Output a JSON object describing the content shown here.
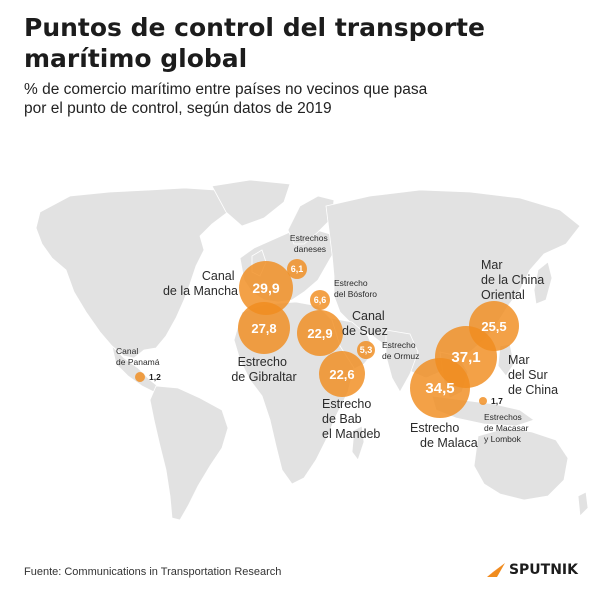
{
  "header": {
    "title_line1": "Puntos de control del transporte",
    "title_line2": "marítimo global",
    "subtitle_line1": "% de comercio marítimo entre países no vecinos que pasa",
    "subtitle_line2": "por el punto de control, según datos de 2019"
  },
  "chokepoints": [
    {
      "name_lines": [
        "Canal",
        "de la Mancha"
      ],
      "value": "29,9"
    },
    {
      "name_lines": [
        "Estrechos",
        "daneses"
      ],
      "value": "6,1"
    },
    {
      "name_lines": [
        "Estrecho",
        "del Bósforo"
      ],
      "value": "6,6"
    },
    {
      "name_lines": [
        "Canal",
        "de Suez"
      ],
      "value": "22,9"
    },
    {
      "name_lines": [
        "Estrecho",
        "de Gibraltar"
      ],
      "value": "27,8"
    },
    {
      "name_lines": [
        "Estrecho",
        "de Ormuz"
      ],
      "value": "5,3"
    },
    {
      "name_lines": [
        "Estrecho",
        "de Bab",
        "el Mandeb"
      ],
      "value": "22,6"
    },
    {
      "name_lines": [
        "Canal",
        "de Panamá"
      ],
      "value": "1,2"
    },
    {
      "name_lines": [
        "Mar",
        "de la China",
        "Oriental"
      ],
      "value": "25,5"
    },
    {
      "name_lines": [
        "Mar",
        "del Sur",
        "de China"
      ],
      "value": "37,1"
    },
    {
      "name_lines": [
        "Estrecho",
        "de Malaca"
      ],
      "value": "34,5"
    },
    {
      "name_lines": [
        "Estrechos",
        "de Macasar",
        "y Lombok"
      ],
      "value": "1,7"
    }
  ],
  "colors": {
    "bubble": "#f08c1e",
    "land": "#e2e2e2",
    "text": "#1f1f1f"
  },
  "footer": {
    "source": "Fuente: Communications in Transportation Research",
    "brand": "SPUTNIK"
  }
}
